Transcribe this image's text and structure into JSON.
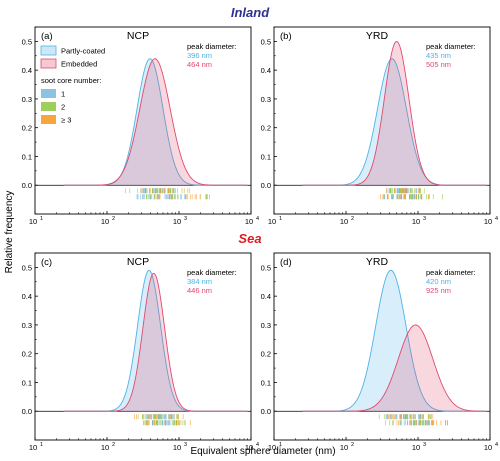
{
  "figure": {
    "section_top": "Inland",
    "section_bottom": "Sea",
    "ylabel": "Relative frequency",
    "xlabel": "Equivalent sphere diameter (nm)",
    "colors": {
      "inland_title": "#2e3192",
      "sea_title": "#e01b24",
      "partly": "#4fb3e6",
      "embedded": "#e04a6e",
      "core1": "#7ab7e0",
      "core2": "#8dc63f",
      "core3": "#f7941d"
    }
  },
  "legend": {
    "series": [
      "Partly-coated",
      "Embedded"
    ],
    "soot_title": "soot core number:",
    "soot_items": [
      "1",
      "2",
      "≥ 3"
    ]
  },
  "chart_data": [
    {
      "type": "area",
      "panel": "(a)",
      "title": "NCP",
      "x_scale": "log",
      "xlim": [
        10,
        10000
      ],
      "ylim": [
        -0.1,
        0.55
      ],
      "x_ticks": [
        "10",
        "10",
        "10",
        "10"
      ],
      "x_tick_exp": [
        "1",
        "2",
        "3",
        "4"
      ],
      "y_ticks": [
        "0.0",
        "0.1",
        "0.2",
        "0.3",
        "0.4",
        "0.5"
      ],
      "peak_label": "peak diameter:",
      "series": [
        {
          "name": "Partly-coated",
          "peak_text": "396 nm",
          "peak": 396,
          "height": 0.44,
          "sigma_log10": 0.18
        },
        {
          "name": "Embedded",
          "peak_text": "464 nm",
          "peak": 464,
          "height": 0.44,
          "sigma_log10": 0.21
        }
      ],
      "rugs": [
        {
          "row": 1,
          "from": 160,
          "to": 2100
        },
        {
          "row": 2,
          "from": 180,
          "to": 3600
        }
      ]
    },
    {
      "type": "area",
      "panel": "(b)",
      "title": "YRD",
      "x_scale": "log",
      "xlim": [
        10,
        10000
      ],
      "ylim": [
        -0.1,
        0.55
      ],
      "x_ticks": [
        "10",
        "10",
        "10",
        "10"
      ],
      "x_tick_exp": [
        "1",
        "2",
        "3",
        "4"
      ],
      "y_ticks": [
        "0.0",
        "0.1",
        "0.2",
        "0.3",
        "0.4",
        "0.5"
      ],
      "peak_label": "peak diameter:",
      "series": [
        {
          "name": "Partly-coated",
          "peak_text": "435 nm",
          "peak": 435,
          "height": 0.44,
          "sigma_log10": 0.2
        },
        {
          "name": "Embedded",
          "peak_text": "505 nm",
          "peak": 505,
          "height": 0.5,
          "sigma_log10": 0.17
        }
      ],
      "rugs": [
        {
          "row": 1,
          "from": 240,
          "to": 1600
        },
        {
          "row": 2,
          "from": 230,
          "to": 2400
        }
      ]
    },
    {
      "type": "area",
      "panel": "(c)",
      "title": "NCP",
      "x_scale": "log",
      "xlim": [
        10,
        10000
      ],
      "ylim": [
        -0.1,
        0.55
      ],
      "x_ticks": [
        "10",
        "10",
        "10",
        "10"
      ],
      "x_tick_exp": [
        "1",
        "2",
        "3",
        "4"
      ],
      "y_ticks": [
        "0.0",
        "0.1",
        "0.2",
        "0.3",
        "0.4",
        "0.5"
      ],
      "peak_label": "peak diameter:",
      "series": [
        {
          "name": "Partly-coated",
          "peak_text": "384 nm",
          "peak": 384,
          "height": 0.49,
          "sigma_log10": 0.16
        },
        {
          "name": "Embedded",
          "peak_text": "446 nm",
          "peak": 446,
          "height": 0.48,
          "sigma_log10": 0.15
        }
      ],
      "rugs": [
        {
          "row": 1,
          "from": 190,
          "to": 1700
        },
        {
          "row": 2,
          "from": 220,
          "to": 1800
        }
      ]
    },
    {
      "type": "area",
      "panel": "(d)",
      "title": "YRD",
      "x_scale": "log",
      "xlim": [
        10,
        10000
      ],
      "ylim": [
        -0.1,
        0.55
      ],
      "x_ticks": [
        "10",
        "10",
        "10",
        "10"
      ],
      "x_tick_exp": [
        "1",
        "2",
        "3",
        "4"
      ],
      "y_ticks": [
        "0.0",
        "0.1",
        "0.2",
        "0.3",
        "0.4",
        "0.5"
      ],
      "peak_label": "peak diameter:",
      "series": [
        {
          "name": "Partly-coated",
          "peak_text": "420 nm",
          "peak": 420,
          "height": 0.49,
          "sigma_log10": 0.21
        },
        {
          "name": "Embedded",
          "peak_text": "925 nm",
          "peak": 925,
          "height": 0.3,
          "sigma_log10": 0.24
        }
      ],
      "rugs": [
        {
          "row": 1,
          "from": 200,
          "to": 2600
        },
        {
          "row": 2,
          "from": 220,
          "to": 4200
        }
      ]
    }
  ]
}
